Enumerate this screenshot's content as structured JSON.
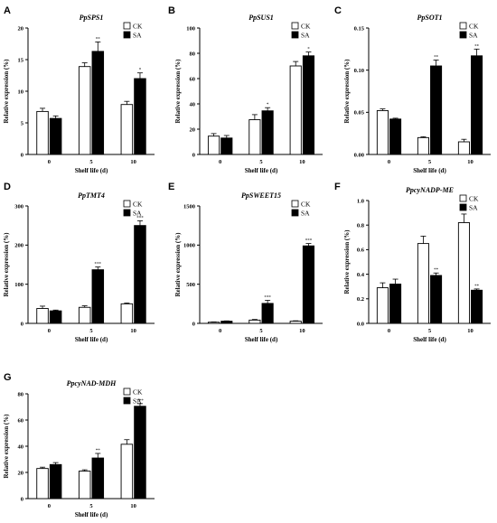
{
  "chart_data": [
    {
      "panel": "A",
      "type": "bar",
      "title": "PpSPS1",
      "xlabel": "Shelf life (d)",
      "ylabel": "Relative expression (%)",
      "categories": [
        "0",
        "5",
        "10"
      ],
      "yticks": [
        0,
        5,
        10,
        15,
        20
      ],
      "ylim": [
        0,
        20
      ],
      "series": [
        {
          "name": "CK",
          "values": [
            6.8,
            13.9,
            7.9
          ],
          "errors": [
            0.5,
            0.6,
            0.5
          ],
          "sig": [
            "",
            "",
            ""
          ]
        },
        {
          "name": "SA",
          "values": [
            5.7,
            16.3,
            12.0
          ],
          "errors": [
            0.4,
            1.5,
            0.9
          ],
          "sig": [
            "",
            "**",
            "*"
          ]
        }
      ]
    },
    {
      "panel": "B",
      "type": "bar",
      "title": "PpSUS1",
      "xlabel": "Shelf life (d)",
      "ylabel": "Relative expression (%)",
      "categories": [
        "0",
        "5",
        "10"
      ],
      "yticks": [
        0,
        20,
        40,
        60,
        80,
        100
      ],
      "ylim": [
        0,
        100
      ],
      "series": [
        {
          "name": "CK",
          "values": [
            14.5,
            27.5,
            70.0
          ],
          "errors": [
            2.0,
            4.0,
            3.5
          ],
          "sig": [
            "",
            "",
            ""
          ]
        },
        {
          "name": "SA",
          "values": [
            13.0,
            34.5,
            78.0
          ],
          "errors": [
            2.0,
            2.5,
            3.0
          ],
          "sig": [
            "",
            "*",
            "*"
          ]
        }
      ]
    },
    {
      "panel": "C",
      "type": "bar",
      "title": "PpSOT1",
      "xlabel": "Shelf life (d)",
      "ylabel": "Relative expression (%)",
      "categories": [
        "0",
        "5",
        "10"
      ],
      "yticks": [
        "0.00",
        "0.05",
        "0.10",
        "0.15"
      ],
      "ylim": [
        0,
        0.15
      ],
      "series": [
        {
          "name": "CK",
          "values": [
            0.052,
            0.02,
            0.015
          ],
          "errors": [
            0.002,
            0.001,
            0.003
          ],
          "sig": [
            "",
            "",
            ""
          ]
        },
        {
          "name": "SA",
          "values": [
            0.042,
            0.105,
            0.117
          ],
          "errors": [
            0.001,
            0.007,
            0.008
          ],
          "sig": [
            "",
            "**",
            "**"
          ]
        }
      ]
    },
    {
      "panel": "D",
      "type": "bar",
      "title": "PpTMT4",
      "xlabel": "Shelf life (d)",
      "ylabel": "Relative expression (%)",
      "categories": [
        "0",
        "5",
        "10"
      ],
      "yticks": [
        0,
        100,
        200,
        300
      ],
      "ylim": [
        0,
        300
      ],
      "series": [
        {
          "name": "CK",
          "values": [
            38,
            41,
            50
          ],
          "errors": [
            6,
            4,
            2
          ],
          "sig": [
            "",
            "",
            ""
          ]
        },
        {
          "name": "SA",
          "values": [
            32,
            137,
            250
          ],
          "errors": [
            2,
            7,
            12
          ],
          "sig": [
            "",
            "***",
            "***"
          ]
        }
      ]
    },
    {
      "panel": "E",
      "type": "bar",
      "title": "PpSWEET15",
      "xlabel": "Shelf life (d)",
      "ylabel": "Relative expression (%)",
      "categories": [
        "0",
        "5",
        "10"
      ],
      "yticks": [
        0,
        500,
        1000,
        1500
      ],
      "ylim": [
        0,
        1500
      ],
      "series": [
        {
          "name": "CK",
          "values": [
            15,
            42,
            28
          ],
          "errors": [
            4,
            8,
            5
          ],
          "sig": [
            "",
            "",
            ""
          ]
        },
        {
          "name": "SA",
          "values": [
            28,
            255,
            990
          ],
          "errors": [
            4,
            40,
            30
          ],
          "sig": [
            "",
            "***",
            "***"
          ]
        }
      ]
    },
    {
      "panel": "F",
      "type": "bar",
      "title": "PpcyNADP-ME",
      "xlabel": "Shelf life (d)",
      "ylabel": "Relative expression (%)",
      "categories": [
        "0",
        "5",
        "10"
      ],
      "yticks": [
        "0.0",
        "0.2",
        "0.4",
        "0.6",
        "0.8",
        "1.0"
      ],
      "ylim": [
        0,
        1.0
      ],
      "series": [
        {
          "name": "CK",
          "values": [
            0.29,
            0.65,
            0.82
          ],
          "errors": [
            0.04,
            0.06,
            0.07
          ],
          "sig": [
            "",
            "",
            ""
          ]
        },
        {
          "name": "SA",
          "values": [
            0.32,
            0.39,
            0.27
          ],
          "errors": [
            0.04,
            0.02,
            0.01
          ],
          "sig": [
            "",
            "**",
            "**"
          ]
        }
      ]
    },
    {
      "panel": "G",
      "type": "bar",
      "title": "PpcyNAD-MDH",
      "xlabel": "Shelf life (d)",
      "ylabel": "Relative expression (%)",
      "categories": [
        "0",
        "5",
        "10"
      ],
      "yticks": [
        0,
        20,
        40,
        60,
        80
      ],
      "ylim": [
        0,
        80
      ],
      "series": [
        {
          "name": "CK",
          "values": [
            23.0,
            21.0,
            41.5
          ],
          "errors": [
            1.0,
            1.0,
            3.5
          ],
          "sig": [
            "",
            "",
            ""
          ]
        },
        {
          "name": "SA",
          "values": [
            26.0,
            31.0,
            70.5
          ],
          "errors": [
            1.5,
            3.5,
            2.0
          ],
          "sig": [
            "",
            "**",
            "***"
          ]
        }
      ]
    }
  ]
}
